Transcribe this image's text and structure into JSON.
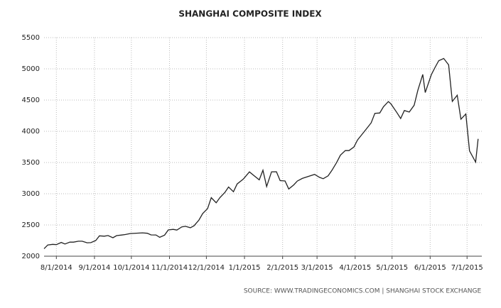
{
  "chart_data": {
    "type": "line",
    "title": "SHANGHAI COMPOSITE INDEX",
    "source": "SOURCE:  WWW.TRADINGECONOMICS.COM  |  SHANGHAI STOCK EXCHANGE",
    "x": [
      "2014-07-22",
      "2014-07-25",
      "2014-07-29",
      "2014-08-01",
      "2014-08-05",
      "2014-08-08",
      "2014-08-12",
      "2014-08-15",
      "2014-08-19",
      "2014-08-22",
      "2014-08-26",
      "2014-08-29",
      "2014-09-02",
      "2014-09-05",
      "2014-09-09",
      "2014-09-12",
      "2014-09-16",
      "2014-09-19",
      "2014-09-23",
      "2014-09-26",
      "2014-09-30",
      "2014-10-10",
      "2014-10-14",
      "2014-10-17",
      "2014-10-21",
      "2014-10-24",
      "2014-10-28",
      "2014-10-31",
      "2014-11-04",
      "2014-11-07",
      "2014-11-11",
      "2014-11-14",
      "2014-11-18",
      "2014-11-21",
      "2014-11-25",
      "2014-11-28",
      "2014-12-02",
      "2014-12-05",
      "2014-12-09",
      "2014-12-12",
      "2014-12-16",
      "2014-12-19",
      "2014-12-23",
      "2014-12-26",
      "2014-12-31",
      "2015-01-05",
      "2015-01-09",
      "2015-01-13",
      "2015-01-16",
      "2015-01-19",
      "2015-01-23",
      "2015-01-27",
      "2015-01-30",
      "2015-02-03",
      "2015-02-06",
      "2015-02-10",
      "2015-02-13",
      "2015-02-17",
      "2015-02-27",
      "2015-03-03",
      "2015-03-06",
      "2015-03-10",
      "2015-03-13",
      "2015-03-17",
      "2015-03-20",
      "2015-03-24",
      "2015-03-27",
      "2015-03-31",
      "2015-04-03",
      "2015-04-07",
      "2015-04-10",
      "2015-04-14",
      "2015-04-17",
      "2015-04-21",
      "2015-04-24",
      "2015-04-28",
      "2015-04-30",
      "2015-05-05",
      "2015-05-08",
      "2015-05-11",
      "2015-05-15",
      "2015-05-19",
      "2015-05-22",
      "2015-05-26",
      "2015-05-28",
      "2015-06-02",
      "2015-06-05",
      "2015-06-08",
      "2015-06-12",
      "2015-06-16",
      "2015-06-19",
      "2015-06-23",
      "2015-06-26",
      "2015-06-30",
      "2015-07-03",
      "2015-07-08",
      "2015-07-10"
    ],
    "series": [
      {
        "color": "#222222",
        "values": [
          2120,
          2180,
          2190,
          2185,
          2220,
          2195,
          2225,
          2225,
          2240,
          2240,
          2215,
          2217,
          2250,
          2326,
          2320,
          2331,
          2296,
          2329,
          2339,
          2347,
          2363,
          2374,
          2367,
          2341,
          2340,
          2302,
          2337,
          2420,
          2430,
          2418,
          2469,
          2478,
          2456,
          2487,
          2580,
          2683,
          2763,
          2938,
          2856,
          2938,
          3021,
          3108,
          3032,
          3157,
          3234,
          3350,
          3285,
          3223,
          3376,
          3116,
          3351,
          3352,
          3210,
          3204,
          3076,
          3141,
          3203,
          3246,
          3310,
          3263,
          3241,
          3286,
          3372,
          3502,
          3617,
          3691,
          3691,
          3748,
          3863,
          3961,
          4034,
          4135,
          4287,
          4293,
          4393,
          4476,
          4441,
          4298,
          4205,
          4333,
          4308,
          4417,
          4657,
          4910,
          4620,
          4910,
          5023,
          5131,
          5166,
          5064,
          4478,
          4577,
          4193,
          4277,
          3687,
          3507,
          3878
        ]
      }
    ],
    "xlim": [
      "2014-07-22",
      "2015-07-13"
    ],
    "xticks": [
      {
        "value": "2014-08-01",
        "label": "8/1/2014"
      },
      {
        "value": "2014-09-01",
        "label": "9/1/2014"
      },
      {
        "value": "2014-10-01",
        "label": "10/1/2014"
      },
      {
        "value": "2014-11-01",
        "label": "11/1/2014"
      },
      {
        "value": "2014-12-01",
        "label": "12/1/2014"
      },
      {
        "value": "2015-01-01",
        "label": "1/1/2015"
      },
      {
        "value": "2015-02-01",
        "label": "2/1/2015"
      },
      {
        "value": "2015-03-01",
        "label": "3/1/2015"
      },
      {
        "value": "2015-04-01",
        "label": "4/1/2015"
      },
      {
        "value": "2015-05-01",
        "label": "5/1/2015"
      },
      {
        "value": "2015-06-01",
        "label": "6/1/2015"
      },
      {
        "value": "2015-07-01",
        "label": "7/1/2015"
      }
    ],
    "ylim": [
      2000,
      5500
    ],
    "yticks": [
      2000,
      2500,
      3000,
      3500,
      4000,
      4500,
      5000,
      5500
    ],
    "grid": true
  }
}
